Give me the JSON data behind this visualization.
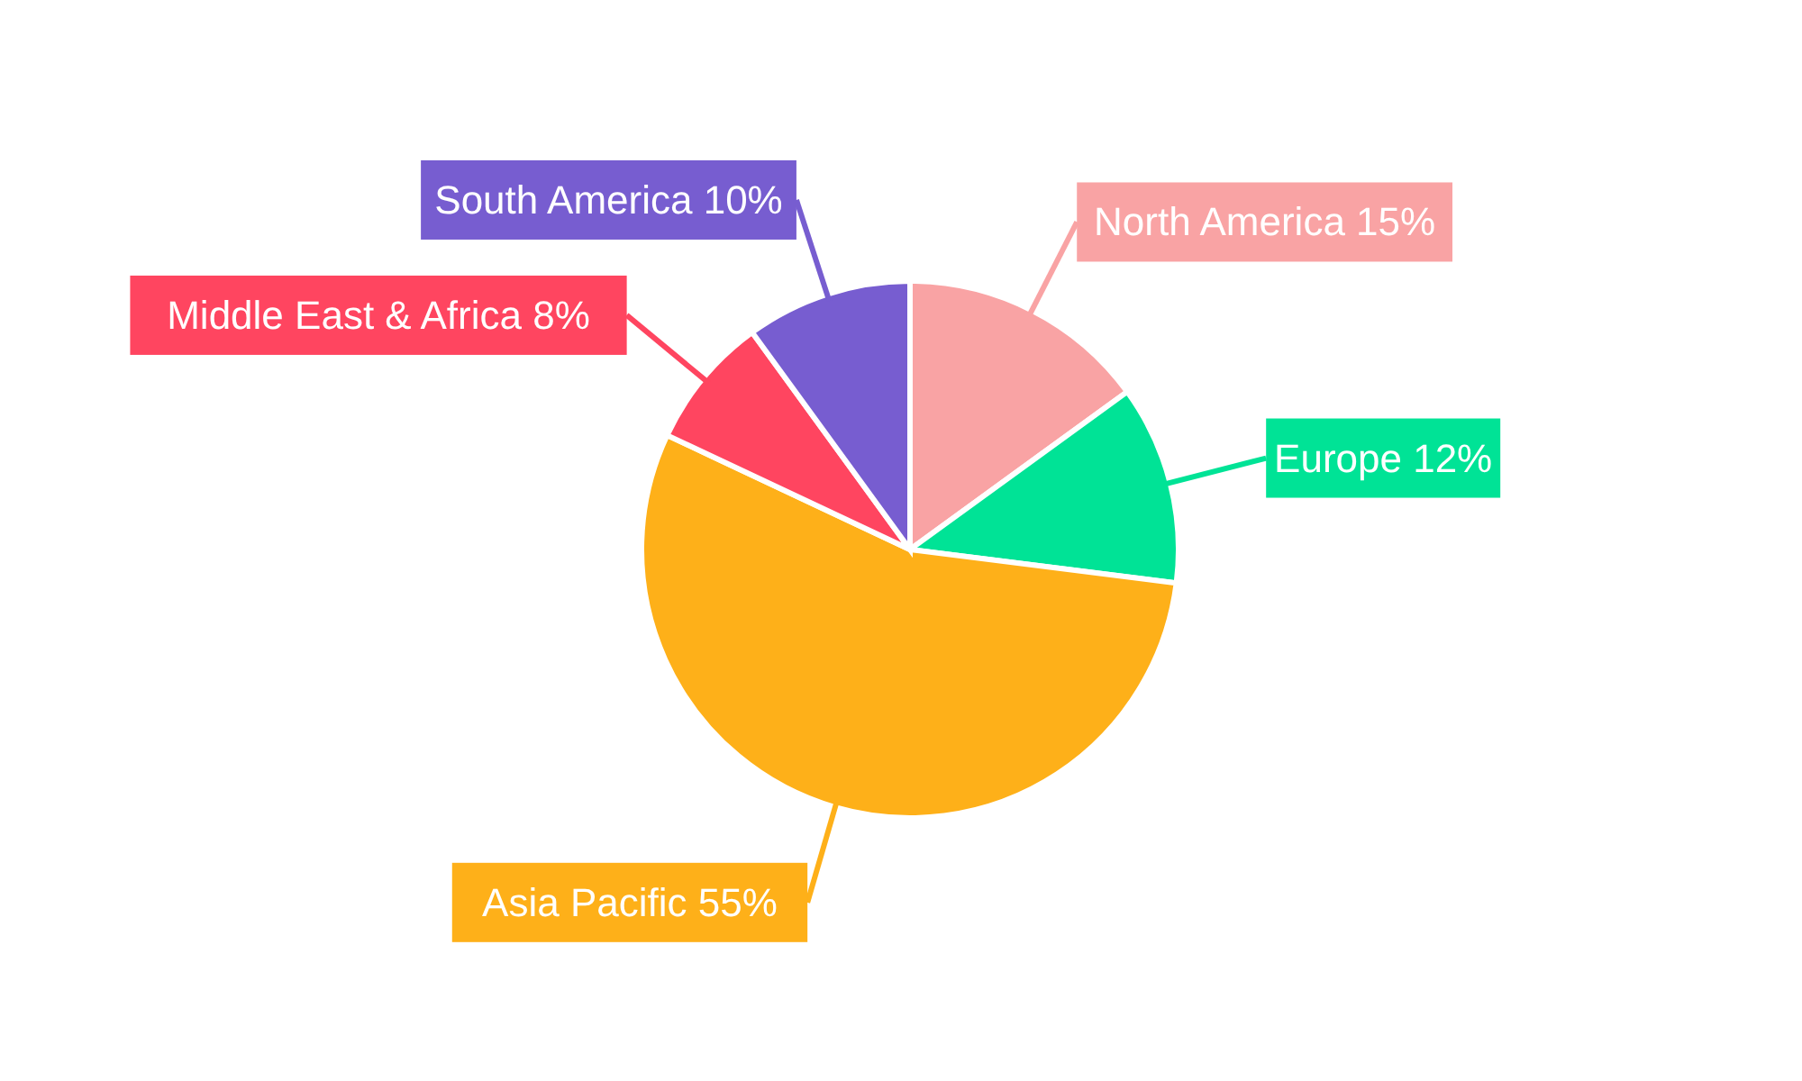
{
  "chart_data": {
    "type": "pie",
    "categories": [
      "North America",
      "Europe",
      "Asia Pacific",
      "Middle East & Africa",
      "South America"
    ],
    "values": [
      15,
      12,
      55,
      8,
      10
    ],
    "value_labels": [
      "15%",
      "12%",
      "55%",
      "8%",
      "10%"
    ],
    "colors": [
      "#f9a3a4",
      "#00e396",
      "#feb019",
      "#ff4560",
      "#775dd0"
    ]
  }
}
